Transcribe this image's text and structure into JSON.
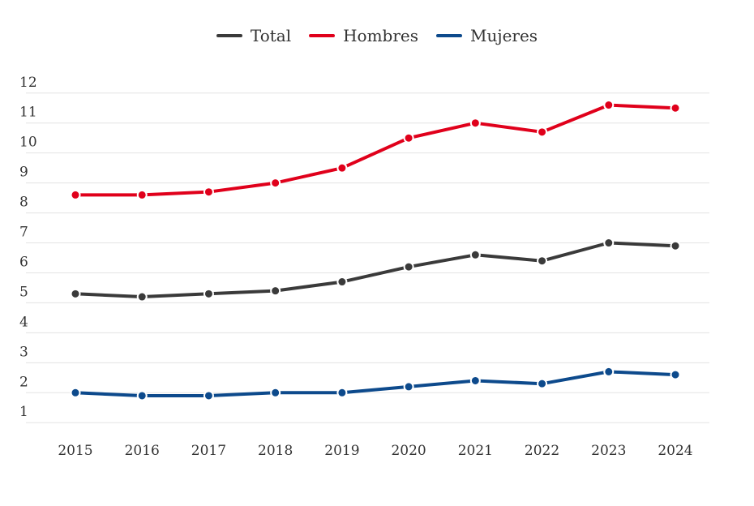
{
  "chart_data": {
    "type": "line",
    "title": "",
    "xlabel": "",
    "ylabel": "",
    "x": [
      "2015",
      "2016",
      "2017",
      "2018",
      "2019",
      "2020",
      "2021",
      "2022",
      "2023",
      "2024"
    ],
    "y_ticks": [
      "1",
      "2",
      "3",
      "4",
      "5",
      "6",
      "7",
      "8",
      "9",
      "10",
      "11",
      "12"
    ],
    "ylim": [
      0.6,
      12.4
    ],
    "grid": true,
    "legend_position": "top-center",
    "series": [
      {
        "name": "Total",
        "color": "#3a3a3a",
        "values": [
          5.3,
          5.2,
          5.3,
          5.4,
          5.7,
          6.2,
          6.6,
          6.4,
          7.0,
          6.9
        ]
      },
      {
        "name": "Hombres",
        "color": "#e0001b",
        "values": [
          8.6,
          8.6,
          8.7,
          9.0,
          9.5,
          10.5,
          11.0,
          10.7,
          11.6,
          11.5
        ]
      },
      {
        "name": "Mujeres",
        "color": "#0d4a8c",
        "values": [
          2.0,
          1.9,
          1.9,
          2.0,
          2.0,
          2.2,
          2.4,
          2.3,
          2.7,
          2.6
        ]
      }
    ]
  }
}
